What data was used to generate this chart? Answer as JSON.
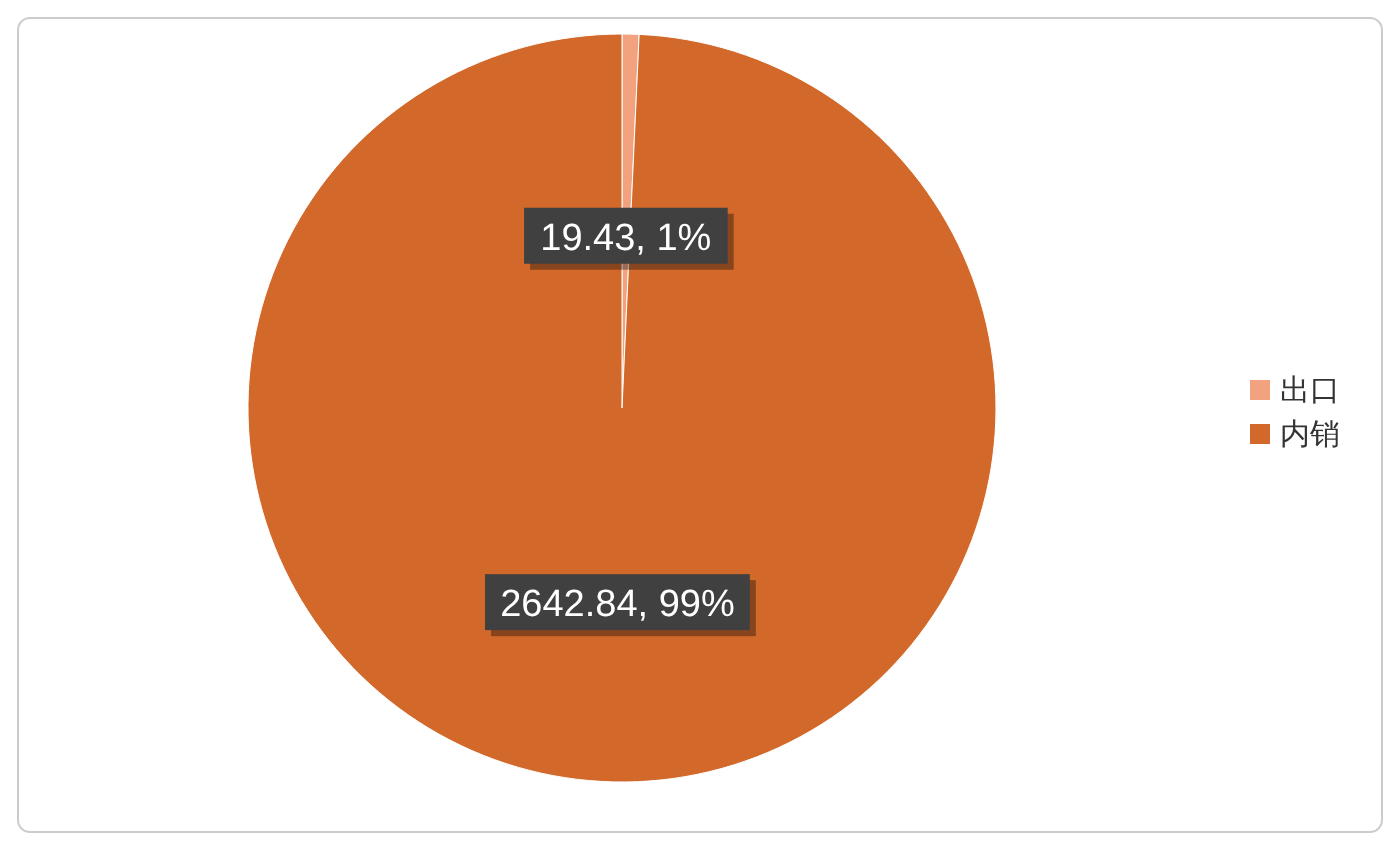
{
  "chart_data": {
    "type": "pie",
    "categories": [
      "出口",
      "内销"
    ],
    "values": [
      19.43,
      2642.84
    ],
    "colors": [
      "#f2a27f",
      "#d2692b"
    ],
    "value_labels": [
      "19.43, 1%",
      "2642.84, 99%"
    ],
    "legend": "right"
  }
}
